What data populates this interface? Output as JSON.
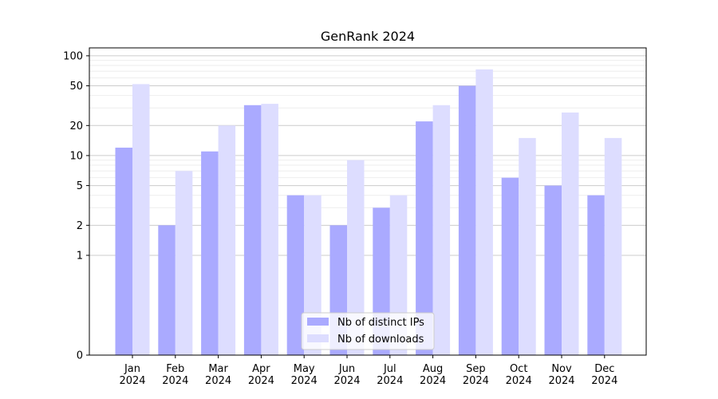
{
  "chart_data": {
    "type": "bar",
    "title": "GenRank 2024",
    "xlabel": "",
    "ylabel": "",
    "yscale": "symlog",
    "ylim": [
      0,
      120
    ],
    "yticks": [
      0,
      1,
      2,
      5,
      10,
      20,
      50,
      100
    ],
    "ytick_labels": [
      "0",
      "1",
      "2",
      "5",
      "10",
      "20",
      "50",
      "100"
    ],
    "categories": [
      "Jan\n2024",
      "Feb\n2024",
      "Mar\n2024",
      "Apr\n2024",
      "May\n2024",
      "Jun\n2024",
      "Jul\n2024",
      "Aug\n2024",
      "Sep\n2024",
      "Oct\n2024",
      "Nov\n2024",
      "Dec\n2024"
    ],
    "series": [
      {
        "name": "Nb of distinct IPs",
        "color": "#aaaaff",
        "values": [
          12,
          2,
          11,
          32,
          4,
          2,
          3,
          22,
          50,
          6,
          5,
          4
        ]
      },
      {
        "name": "Nb of downloads",
        "color": "#ddddff",
        "values": [
          52,
          7,
          20,
          33,
          4,
          9,
          4,
          32,
          73,
          15,
          27,
          15
        ]
      }
    ],
    "grid": true,
    "legend_position": "lower-center"
  }
}
